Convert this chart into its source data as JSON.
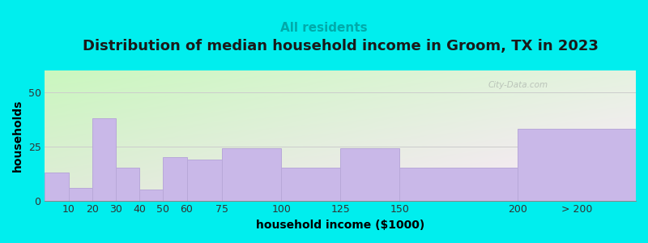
{
  "title": "Distribution of median household income in Groom, TX in 2023",
  "subtitle": "All residents",
  "xlabel": "household income ($1000)",
  "ylabel": "households",
  "background_color": "#00EEEE",
  "bar_color": "#c9b8e8",
  "bar_edge_color": "#b8a8d8",
  "categories": [
    "10",
    "20",
    "30",
    "40",
    "50",
    "60",
    "75",
    "100",
    "125",
    "150",
    "200",
    "> 200"
  ],
  "values": [
    13,
    6,
    38,
    15,
    5,
    20,
    19,
    24,
    15,
    24,
    15,
    33
  ],
  "left_edges": [
    0,
    10,
    20,
    30,
    40,
    50,
    60,
    75,
    100,
    125,
    150,
    200
  ],
  "widths": [
    10,
    10,
    10,
    10,
    10,
    10,
    15,
    25,
    25,
    25,
    50,
    50
  ],
  "ylim": [
    0,
    60
  ],
  "yticks": [
    0,
    25,
    50
  ],
  "xlim": [
    0,
    250
  ],
  "title_fontsize": 13,
  "subtitle_fontsize": 11,
  "axis_label_fontsize": 10,
  "tick_fontsize": 9,
  "watermark": "City-Data.com",
  "title_color": "#1a1a1a",
  "subtitle_color": "#00AAAA",
  "tick_label_positions": [
    10,
    20,
    30,
    40,
    50,
    60,
    75,
    100,
    125,
    150,
    200
  ]
}
